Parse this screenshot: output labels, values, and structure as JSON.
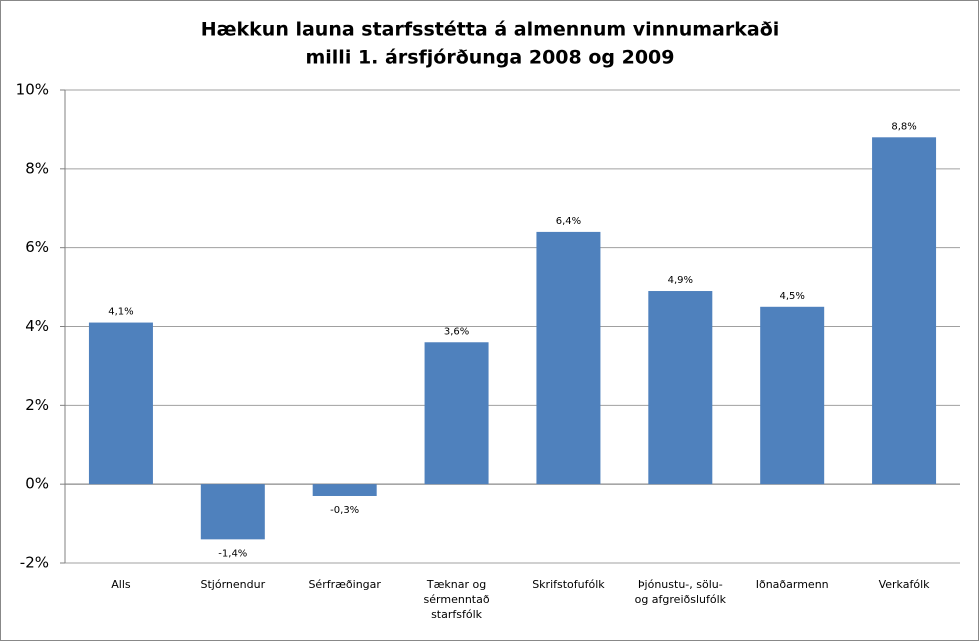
{
  "chart_data": {
    "type": "bar",
    "title": [
      "Hækkun launa starfsstétta á almennum vinnumarkaði",
      "milli 1. ársfjórðunga 2008 og 2009"
    ],
    "categories": [
      "Alls",
      "Stjórnendur",
      "Sérfræðingar",
      "Tæknar og sérmenntað starfsfólk",
      "Skrifstofufólk",
      "Þjónustu-, sölu- og afgreiðslufólk",
      "Iðnaðarmenn",
      "Verkafólk"
    ],
    "values": [
      4.1,
      -1.4,
      -0.3,
      3.6,
      6.4,
      4.9,
      4.5,
      8.8
    ],
    "value_labels": [
      "4,1%",
      "-1,4%",
      "-0,3%",
      "3,6%",
      "6,4%",
      "4,9%",
      "4,5%",
      "8,8%"
    ],
    "color": "#4f81bd",
    "ylim": [
      -2,
      10
    ],
    "yticks": [
      {
        "value": -2,
        "label": "-2%"
      },
      {
        "value": 0,
        "label": "0%"
      },
      {
        "value": 2,
        "label": "2%"
      },
      {
        "value": 4,
        "label": "4%"
      },
      {
        "value": 6,
        "label": "6%"
      },
      {
        "value": 8,
        "label": "8%"
      },
      {
        "value": 10,
        "label": "10%"
      }
    ],
    "grid": true
  }
}
